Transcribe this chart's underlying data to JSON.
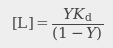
{
  "formula": "$[\\mathrm{L}] = \\dfrac{YK_{\\mathrm{d}}}{(1 - Y)}$",
  "background_color": "#eeeeee",
  "text_color": "#444444",
  "fontsize": 11,
  "fig_width": 1.14,
  "fig_height": 0.48,
  "dpi": 100
}
